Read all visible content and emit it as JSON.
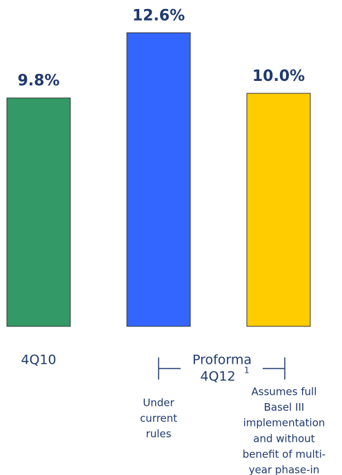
{
  "chart_data": {
    "type": "bar",
    "categories": [
      "4Q10",
      null,
      null
    ],
    "values": [
      9.8,
      12.6,
      10.0
    ],
    "value_labels": [
      "9.8%",
      "12.6%",
      "10.0%"
    ],
    "colors": [
      "#339966",
      "#3366ff",
      "#ffcc00"
    ],
    "group_label": [
      "Proforma",
      "4Q12"
    ],
    "footnote_marker": "1",
    "notes": [
      [
        "Under",
        "current",
        "rules"
      ],
      [
        "Assumes full",
        "Basel III",
        "implementation",
        "and without",
        "benefit of multi-",
        "year phase-in"
      ]
    ]
  }
}
